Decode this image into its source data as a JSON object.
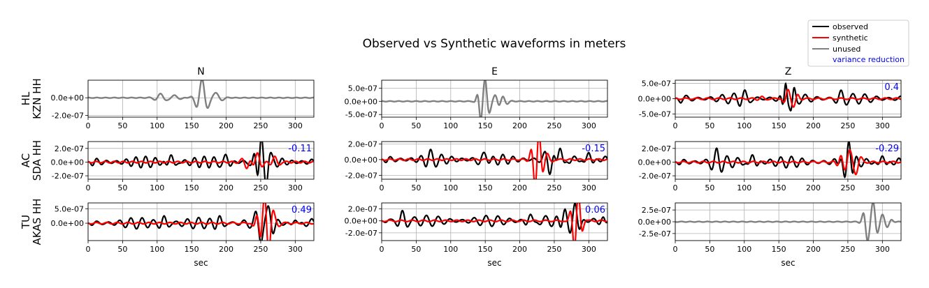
{
  "title": "Observed vs Synthetic waveforms in meters",
  "columns": [
    "N",
    "E",
    "Z"
  ],
  "rows": [
    {
      "net": "HL",
      "sta": "KZN HH"
    },
    {
      "net": "AC",
      "sta": "SDA HH"
    },
    {
      "net": "TU",
      "sta": "AKAS HH"
    }
  ],
  "xlabel": "sec",
  "legend": {
    "placement": "top-right",
    "entries": [
      {
        "label": "observed",
        "color": "#000000",
        "kind": "line"
      },
      {
        "label": "synthetic",
        "color": "#ff0000",
        "kind": "line"
      },
      {
        "label": "unused",
        "color": "#808080",
        "kind": "line"
      },
      {
        "label": "variance reduction",
        "color": "#0000ff",
        "kind": "text"
      }
    ]
  },
  "chart_data": {
    "type": "line",
    "grid": true,
    "xlim": [
      0,
      327
    ],
    "xticks": [
      0,
      50,
      100,
      150,
      200,
      250,
      300
    ],
    "panels": [
      {
        "row": 0,
        "col": 0,
        "used": false,
        "ylim": [
          -2.2e-07,
          2e-07
        ],
        "yticks": [
          0,
          -2e-07
        ],
        "ytick_labels": [
          "0.0e+00",
          "-2.0e-07"
        ],
        "vr": null
      },
      {
        "row": 0,
        "col": 1,
        "used": false,
        "ylim": [
          -6e-07,
          8e-07
        ],
        "yticks": [
          5e-07,
          0,
          -5e-07
        ],
        "ytick_labels": [
          "5.0e-07",
          "0.0e+00",
          "-5.0e-07"
        ],
        "vr": null
      },
      {
        "row": 0,
        "col": 2,
        "used": true,
        "ylim": [
          -6e-07,
          6e-07
        ],
        "yticks": [
          5e-07,
          0,
          -5e-07
        ],
        "ytick_labels": [
          "5.0e-07",
          "0.0e+00",
          "-5.0e-07"
        ],
        "vr": "0.4"
      },
      {
        "row": 1,
        "col": 0,
        "used": true,
        "ylim": [
          -2.5e-07,
          3e-07
        ],
        "yticks": [
          2e-07,
          0,
          -2e-07
        ],
        "ytick_labels": [
          "2.0e-07",
          "0.0e+00",
          "-2.0e-07"
        ],
        "vr": "-0.11"
      },
      {
        "row": 1,
        "col": 1,
        "used": true,
        "ylim": [
          -2.5e-07,
          2.3e-07
        ],
        "yticks": [
          2e-07,
          0,
          -2e-07
        ],
        "ytick_labels": [
          "2.0e-07",
          "0.0e+00",
          "-2.0e-07"
        ],
        "vr": "-0.15"
      },
      {
        "row": 1,
        "col": 2,
        "used": true,
        "ylim": [
          -2.5e-07,
          3e-07
        ],
        "yticks": [
          2e-07,
          0,
          -2e-07
        ],
        "ytick_labels": [
          "2.0e-07",
          "0.0e+00",
          "-2.0e-07"
        ],
        "vr": "-0.29"
      },
      {
        "row": 2,
        "col": 0,
        "used": true,
        "ylim": [
          -6e-07,
          7e-07
        ],
        "yticks": [
          5e-07,
          0
        ],
        "ytick_labels": [
          "5.0e-07",
          "0.0e+00"
        ],
        "vr": "0.49"
      },
      {
        "row": 2,
        "col": 1,
        "used": true,
        "ylim": [
          -3.3e-07,
          3e-07
        ],
        "yticks": [
          2e-07,
          0,
          -2e-07
        ],
        "ytick_labels": [
          "2.0e-07",
          "0.0e+00",
          "-2.0e-07"
        ],
        "vr": "0.06"
      },
      {
        "row": 2,
        "col": 2,
        "used": false,
        "ylim": [
          -4e-07,
          4e-07
        ],
        "yticks": [
          2.5e-07,
          0,
          -2.5e-07
        ],
        "ytick_labels": [
          "2.5e-07",
          "0.0e+00",
          "-2.5e-07"
        ],
        "vr": null
      }
    ]
  }
}
